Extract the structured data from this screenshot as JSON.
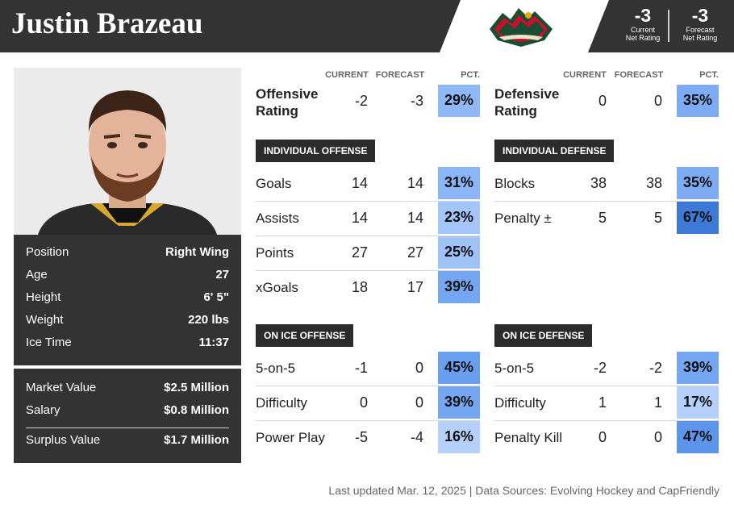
{
  "player": {
    "name": "Justin Brazeau",
    "team_logo": "minnesota-wild-logo-icon",
    "rating_current": "-3",
    "rating_current_label_1": "Current",
    "rating_current_label_2": "Net Rating",
    "rating_forecast": "-3",
    "rating_forecast_label_1": "Forecast",
    "rating_forecast_label_2": "Net Rating"
  },
  "bio": [
    {
      "label": "Position",
      "value": "Right Wing"
    },
    {
      "label": "Age",
      "value": "27"
    },
    {
      "label": "Height",
      "value": "6' 5\""
    },
    {
      "label": "Weight",
      "value": "220 lbs"
    },
    {
      "label": "Ice Time",
      "value": "11:37"
    }
  ],
  "contract": {
    "market_label": "Market Value",
    "market_value": "$2.5 Million",
    "salary_label": "Salary",
    "salary_value": "$0.8 Million",
    "surplus_label": "Surplus Value",
    "surplus_value": "$1.7 Million"
  },
  "columns": {
    "current": "CURRENT",
    "forecast": "FORECAST",
    "pct": "PCT."
  },
  "offense": {
    "rating_label_1": "Offensive",
    "rating_label_2": "Rating",
    "rating_current": "-2",
    "rating_forecast": "-3",
    "rating_pct": "29%",
    "individual_title": "INDIVIDUAL OFFENSE",
    "individual": [
      {
        "label": "Goals",
        "current": "14",
        "forecast": "14",
        "pct": "31%"
      },
      {
        "label": "Assists",
        "current": "14",
        "forecast": "14",
        "pct": "23%"
      },
      {
        "label": "Points",
        "current": "27",
        "forecast": "27",
        "pct": "25%"
      },
      {
        "label": "xGoals",
        "current": "18",
        "forecast": "17",
        "pct": "39%"
      }
    ],
    "onice_title": "ON ICE OFFENSE",
    "onice": [
      {
        "label": "5-on-5",
        "current": "-1",
        "forecast": "0",
        "pct": "45%"
      },
      {
        "label": "Difficulty",
        "current": "0",
        "forecast": "0",
        "pct": "39%"
      },
      {
        "label": "Power Play",
        "current": "-5",
        "forecast": "-4",
        "pct": "16%"
      }
    ]
  },
  "defense": {
    "rating_label_1": "Defensive",
    "rating_label_2": "Rating",
    "rating_current": "0",
    "rating_forecast": "0",
    "rating_pct": "35%",
    "individual_title": "INDIVIDUAL DEFENSE",
    "individual": [
      {
        "label": "Blocks",
        "current": "38",
        "forecast": "38",
        "pct": "35%"
      },
      {
        "label": "Penalty ±",
        "current": "5",
        "forecast": "5",
        "pct": "67%"
      }
    ],
    "onice_title": "ON ICE DEFENSE",
    "onice": [
      {
        "label": "5-on-5",
        "current": "-2",
        "forecast": "-2",
        "pct": "39%"
      },
      {
        "label": "Difficulty",
        "current": "1",
        "forecast": "1",
        "pct": "17%"
      },
      {
        "label": "Penalty Kill",
        "current": "0",
        "forecast": "0",
        "pct": "47%"
      }
    ]
  },
  "colors": {
    "pct_16": "#b5d0fb",
    "pct_17": "#b5d0fb",
    "pct_23": "#a3c5f9",
    "pct_25": "#9fc2f9",
    "pct_29": "#8fb8f7",
    "pct_31": "#8ab5f6",
    "pct_35": "#7eacf4",
    "pct_39": "#74a6f2",
    "pct_45": "#6a9ff0",
    "pct_47": "#5d95ec",
    "pct_67": "#3d7ad6"
  },
  "footer": "Last updated Mar. 12, 2025 | Data Sources: Evolving Hockey and CapFriendly"
}
